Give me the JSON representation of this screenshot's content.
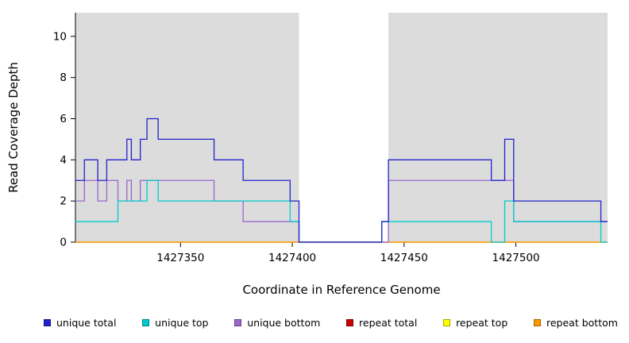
{
  "chart_data": {
    "type": "line",
    "step": true,
    "title": "",
    "xlabel": "Coordinate in Reference Genome",
    "ylabel": "Read Coverage Depth",
    "xlim": [
      1427303,
      1427541
    ],
    "ylim": [
      0,
      11.15
    ],
    "x_ticks": [
      1427350,
      1427400,
      1427450,
      1427500
    ],
    "y_ticks": [
      0,
      2,
      4,
      6,
      8,
      10
    ],
    "grid": false,
    "legend_position": "bottom",
    "shaded_regions": [
      {
        "start": 1427303,
        "end": 1427403,
        "color": "#DCDCDC"
      },
      {
        "start": 1427443,
        "end": 1427541,
        "color": "#DCDCDC"
      }
    ],
    "series": [
      {
        "name": "repeat total",
        "color": "#CC0000",
        "steps": [
          [
            1427303,
            0
          ]
        ]
      },
      {
        "name": "repeat top",
        "color": "#FFFF00",
        "steps": [
          [
            1427303,
            0
          ]
        ]
      },
      {
        "name": "repeat bottom",
        "color": "#FF9900",
        "steps": [
          [
            1427303,
            0
          ]
        ]
      },
      {
        "name": "unique bottom",
        "color": "#9966CC",
        "steps": [
          [
            1427303,
            2
          ],
          [
            1427307,
            3
          ],
          [
            1427313,
            2
          ],
          [
            1427317,
            3
          ],
          [
            1427322,
            2
          ],
          [
            1427326,
            3
          ],
          [
            1427328,
            2
          ],
          [
            1427332,
            3
          ],
          [
            1427365,
            2
          ],
          [
            1427378,
            1
          ],
          [
            1427403,
            0
          ],
          [
            1427443,
            3
          ],
          [
            1427499,
            1
          ]
        ]
      },
      {
        "name": "unique top",
        "color": "#00CCCC",
        "steps": [
          [
            1427303,
            1
          ],
          [
            1427322,
            2
          ],
          [
            1427335,
            3
          ],
          [
            1427340,
            2
          ],
          [
            1427399,
            1
          ],
          [
            1427403,
            0
          ],
          [
            1427440,
            1
          ],
          [
            1427489,
            0
          ],
          [
            1427495,
            2
          ],
          [
            1427499,
            1
          ],
          [
            1427538,
            0
          ]
        ]
      },
      {
        "name": "unique total",
        "color": "#2222CC",
        "steps": [
          [
            1427303,
            3
          ],
          [
            1427307,
            4
          ],
          [
            1427313,
            3
          ],
          [
            1427317,
            4
          ],
          [
            1427322,
            4
          ],
          [
            1427326,
            5
          ],
          [
            1427328,
            4
          ],
          [
            1427332,
            5
          ],
          [
            1427335,
            6
          ],
          [
            1427340,
            5
          ],
          [
            1427365,
            4
          ],
          [
            1427378,
            3
          ],
          [
            1427399,
            2
          ],
          [
            1427403,
            0
          ],
          [
            1427440,
            1
          ],
          [
            1427443,
            4
          ],
          [
            1427489,
            3
          ],
          [
            1427495,
            5
          ],
          [
            1427499,
            2
          ],
          [
            1427538,
            1
          ]
        ]
      }
    ]
  },
  "legend": {
    "items": [
      {
        "label": "unique total",
        "color": "#2222CC"
      },
      {
        "label": "unique top",
        "color": "#00CCCC"
      },
      {
        "label": "unique bottom",
        "color": "#9966CC"
      },
      {
        "label": "repeat total",
        "color": "#CC0000"
      },
      {
        "label": "repeat top",
        "color": "#FFFF00"
      },
      {
        "label": "repeat bottom",
        "color": "#FF9900"
      }
    ]
  }
}
